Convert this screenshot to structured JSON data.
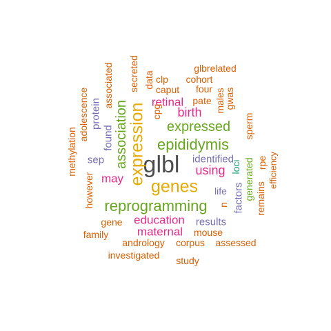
{
  "colors": {
    "orange": "#d95f02",
    "green": "#1b9e77",
    "purple": "#7570b3",
    "magenta": "#e7298a",
    "olive": "#66a61e",
    "gold": "#e6ab02",
    "gray": "#4d4d4d"
  },
  "words": [
    {
      "text": "glbl",
      "color": "gray"
    },
    {
      "text": "genes",
      "color": "gold"
    },
    {
      "text": "expression",
      "color": "gold"
    },
    {
      "text": "reprogramming",
      "color": "olive"
    },
    {
      "text": "epididymis",
      "color": "olive"
    },
    {
      "text": "expressed",
      "color": "olive"
    },
    {
      "text": "association",
      "color": "olive"
    },
    {
      "text": "using",
      "color": "magenta"
    },
    {
      "text": "birth",
      "color": "magenta"
    },
    {
      "text": "retinal",
      "color": "magenta"
    },
    {
      "text": "may",
      "color": "magenta"
    },
    {
      "text": "education",
      "color": "magenta"
    },
    {
      "text": "maternal",
      "color": "magenta"
    },
    {
      "text": "identified",
      "color": "purple"
    },
    {
      "text": "results",
      "color": "purple"
    },
    {
      "text": "sep",
      "color": "purple"
    },
    {
      "text": "found",
      "color": "purple"
    },
    {
      "text": "protein",
      "color": "purple"
    },
    {
      "text": "factors",
      "color": "purple"
    },
    {
      "text": "life",
      "color": "purple"
    },
    {
      "text": "loci",
      "color": "green"
    },
    {
      "text": "generated",
      "color": "olive"
    },
    {
      "text": "glbrelated",
      "color": "orange"
    },
    {
      "text": "cohort",
      "color": "orange"
    },
    {
      "text": "four",
      "color": "orange"
    },
    {
      "text": "caput",
      "color": "orange"
    },
    {
      "text": "pate",
      "color": "orange"
    },
    {
      "text": "clp",
      "color": "orange"
    },
    {
      "text": "data",
      "color": "orange"
    },
    {
      "text": "secreted",
      "color": "orange"
    },
    {
      "text": "associated",
      "color": "orange"
    },
    {
      "text": "cpg",
      "color": "orange"
    },
    {
      "text": "males",
      "color": "orange"
    },
    {
      "text": "gwas",
      "color": "orange"
    },
    {
      "text": "sperm",
      "color": "orange"
    },
    {
      "text": "rpe",
      "color": "orange"
    },
    {
      "text": "remains",
      "color": "orange"
    },
    {
      "text": "efficiency",
      "color": "orange"
    },
    {
      "text": "adolescence",
      "color": "orange"
    },
    {
      "text": "methylation",
      "color": "orange"
    },
    {
      "text": "however",
      "color": "orange"
    },
    {
      "text": "n",
      "color": "orange"
    },
    {
      "text": "gene",
      "color": "orange"
    },
    {
      "text": "family",
      "color": "orange"
    },
    {
      "text": "mouse",
      "color": "orange"
    },
    {
      "text": "andrology",
      "color": "orange"
    },
    {
      "text": "corpus",
      "color": "orange"
    },
    {
      "text": "assessed",
      "color": "orange"
    },
    {
      "text": "investigated",
      "color": "orange"
    },
    {
      "text": "study",
      "color": "orange"
    }
  ]
}
